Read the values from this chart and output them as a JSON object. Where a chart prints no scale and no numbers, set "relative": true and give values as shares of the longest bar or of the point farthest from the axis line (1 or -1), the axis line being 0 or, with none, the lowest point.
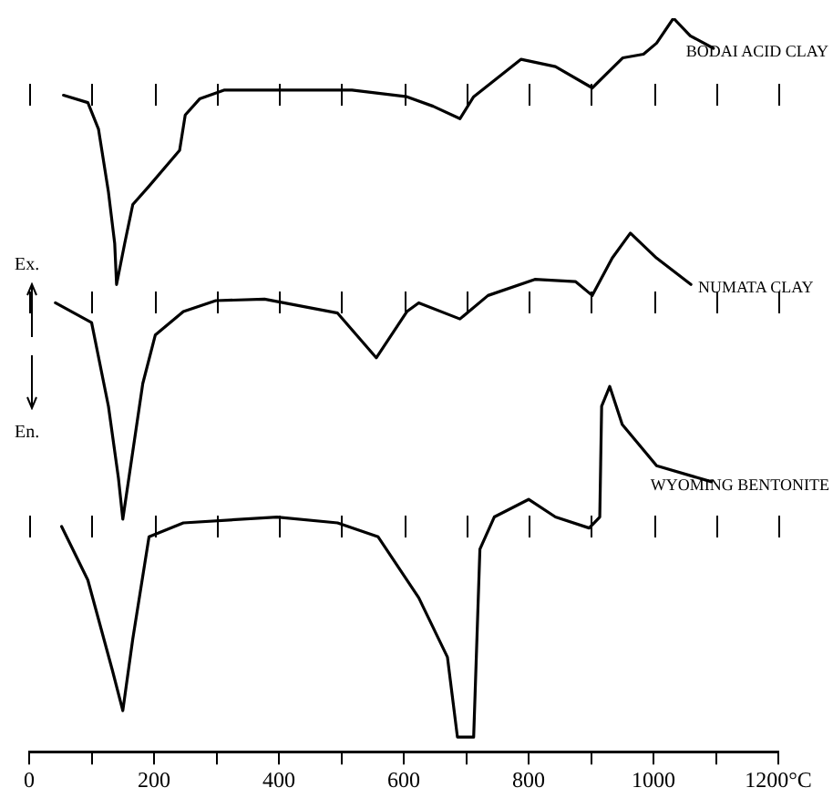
{
  "chart_data": {
    "type": "line",
    "relative": true,
    "legend": false,
    "grid": false,
    "marker": "none",
    "line_style": "solid",
    "annotations": [
      "Ex.",
      "En."
    ],
    "xlim": [
      0,
      1200
    ],
    "xticks": [
      0,
      {
        "value": 100,
        "label": null
      },
      200,
      {
        "value": 300,
        "label": null
      },
      400,
      {
        "value": 500,
        "label": null
      },
      600,
      {
        "value": 700,
        "label": null
      },
      800,
      {
        "value": 900,
        "label": null
      },
      1000,
      {
        "value": 1100,
        "label": null
      },
      {
        "value": 1200,
        "label": "1200°C"
      }
    ],
    "series": [
      {
        "name": "BODAI ACID CLAY",
        "color": "#000000",
        "x": [
          55,
          94,
          111,
          127,
          137,
          140,
          153,
          166,
          192,
          241,
          250,
          273,
          312,
          517,
          605,
          647,
          690,
          712,
          788,
          843,
          902,
          951,
          984,
          1005,
          1032,
          1059,
          1096
        ],
        "values": [
          0.895,
          0.885,
          0.849,
          0.763,
          0.693,
          0.637,
          0.693,
          0.746,
          0.771,
          0.82,
          0.868,
          0.89,
          0.902,
          0.902,
          0.893,
          0.88,
          0.863,
          0.893,
          0.944,
          0.934,
          0.905,
          0.946,
          0.951,
          0.966,
          1.0,
          0.976,
          0.959
        ]
      },
      {
        "name": "NUMATA CLAY",
        "color": "#000000",
        "x": [
          42,
          100,
          127,
          143,
          150,
          182,
          202,
          247,
          299,
          377,
          494,
          556,
          605,
          624,
          690,
          735,
          810,
          875,
          902,
          934,
          963,
          1005,
          1060
        ],
        "values": [
          0.612,
          0.585,
          0.471,
          0.373,
          0.317,
          0.502,
          0.568,
          0.6,
          0.615,
          0.617,
          0.598,
          0.537,
          0.6,
          0.612,
          0.59,
          0.622,
          0.644,
          0.641,
          0.622,
          0.673,
          0.707,
          0.673,
          0.637
        ]
      },
      {
        "name": "WYOMING BENTONITE",
        "color": "#000000",
        "x": [
          52,
          94,
          133,
          150,
          166,
          192,
          247,
          397,
          494,
          559,
          624,
          670,
          686,
          712,
          722,
          745,
          800,
          843,
          897,
          914,
          917,
          930,
          950,
          1005,
          1093
        ],
        "values": [
          0.307,
          0.234,
          0.112,
          0.056,
          0.154,
          0.293,
          0.312,
          0.32,
          0.312,
          0.293,
          0.21,
          0.129,
          0.02,
          0.02,
          0.276,
          0.32,
          0.344,
          0.32,
          0.305,
          0.32,
          0.471,
          0.498,
          0.446,
          0.39,
          0.368
        ]
      }
    ]
  }
}
